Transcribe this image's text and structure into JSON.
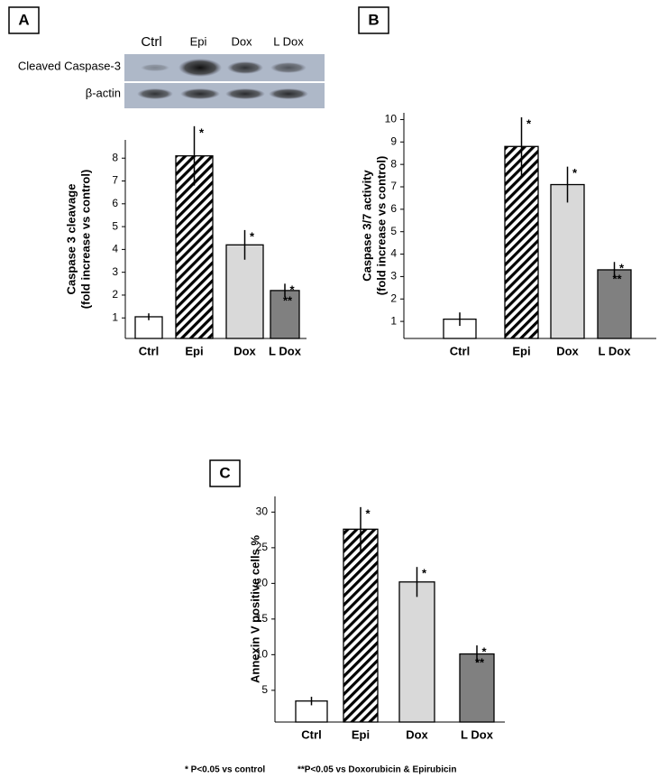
{
  "chart_data": [
    {
      "type": "bar",
      "panel": "A",
      "blot": {
        "lanes": [
          "Ctrl",
          "Epi",
          "Dox",
          "L Dox"
        ],
        "rows": [
          "Cleaved Caspase-3",
          "β-actin"
        ]
      },
      "ylabel": [
        "Caspase 3 cleavage",
        "(fold increase  vs control)"
      ],
      "categories": [
        "Ctrl",
        "Epi",
        "Dox",
        "L Dox"
      ],
      "values": [
        1.05,
        8.1,
        4.2,
        2.2
      ],
      "errors": [
        0.15,
        1.3,
        0.65,
        0.3
      ],
      "annotations": [
        [],
        [
          "*"
        ],
        [
          "*"
        ],
        [
          "*",
          "**"
        ]
      ],
      "colors": [
        "#ffffff",
        "#ffffff",
        "#d9d9d9",
        "#808080"
      ],
      "patterns": [
        null,
        "hatch",
        null,
        null
      ],
      "ylim": [
        0.1,
        8.8
      ],
      "yticks": [
        1,
        2,
        3,
        4,
        5,
        6,
        7,
        8
      ]
    },
    {
      "type": "bar",
      "panel": "B",
      "ylabel": [
        "Caspase 3/7 activity",
        "(fold increase  vs control)"
      ],
      "categories": [
        "Ctrl",
        "Epi",
        "Dox",
        "L Dox"
      ],
      "values": [
        1.1,
        8.8,
        7.1,
        3.3
      ],
      "errors": [
        0.3,
        1.3,
        0.8,
        0.35
      ],
      "annotations": [
        [],
        [
          "*"
        ],
        [
          "*"
        ],
        [
          "*",
          "**"
        ]
      ],
      "colors": [
        "#ffffff",
        "#ffffff",
        "#d9d9d9",
        "#808080"
      ],
      "patterns": [
        null,
        "hatch",
        null,
        null
      ],
      "ylim": [
        0.24,
        10.3
      ],
      "yticks": [
        1,
        2,
        3,
        4,
        5,
        6,
        7,
        8,
        9,
        10
      ]
    },
    {
      "type": "bar",
      "panel": "C",
      "ylabel": [
        "Annexin V positive cells %"
      ],
      "categories": [
        "Ctrl",
        "Epi",
        "Dox",
        "L Dox"
      ],
      "values": [
        3.5,
        27.6,
        20.2,
        10.1
      ],
      "errors": [
        0.6,
        3.1,
        2.1,
        1.2
      ],
      "annotations": [
        [],
        [
          "*"
        ],
        [
          "*"
        ],
        [
          "*",
          "**"
        ]
      ],
      "colors": [
        "#ffffff",
        "#ffffff",
        "#d9d9d9",
        "#808080"
      ],
      "patterns": [
        null,
        "hatch",
        null,
        null
      ],
      "ylim": [
        0.55,
        32.2
      ],
      "yticks": [
        5,
        10,
        15,
        20,
        25,
        30
      ]
    }
  ],
  "footnotes": [
    "* P<0.05 vs control",
    "**P<0.05 vs Doxorubicin & Epirubicin"
  ]
}
